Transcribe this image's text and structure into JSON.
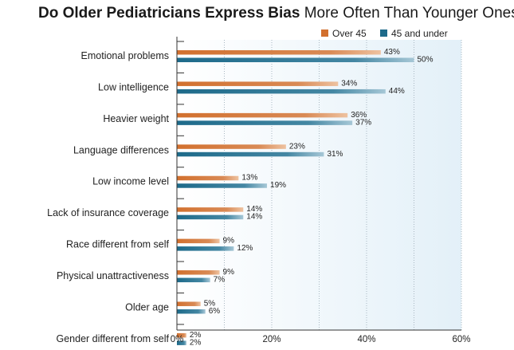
{
  "title_bold": "Do Older Pediatricians Express Bias",
  "title_rest": "More Often Than Younger Ones?",
  "colors": {
    "over45": "#d2702e",
    "under45": "#1d6a8a"
  },
  "chart_data": {
    "type": "bar",
    "orientation": "horizontal",
    "title": "Do Older Pediatricians Express Bias More Often Than Younger Ones?",
    "categories": [
      "Emotional problems",
      "Low intelligence",
      "Heavier weight",
      "Language differences",
      "Low income level",
      "Lack of insurance coverage",
      "Race different from self",
      "Physical unattractiveness",
      "Older age",
      "Gender different from self"
    ],
    "series": [
      {
        "name": "Over 45",
        "values": [
          43,
          34,
          36,
          23,
          13,
          14,
          9,
          9,
          5,
          2
        ]
      },
      {
        "name": "45 and under",
        "values": [
          50,
          44,
          37,
          31,
          19,
          14,
          12,
          7,
          6,
          2
        ]
      }
    ],
    "xlim": [
      0,
      60
    ],
    "xticks": [
      "0%",
      "20%",
      "40%",
      "60%"
    ],
    "legend": "top-right",
    "grid": true
  }
}
